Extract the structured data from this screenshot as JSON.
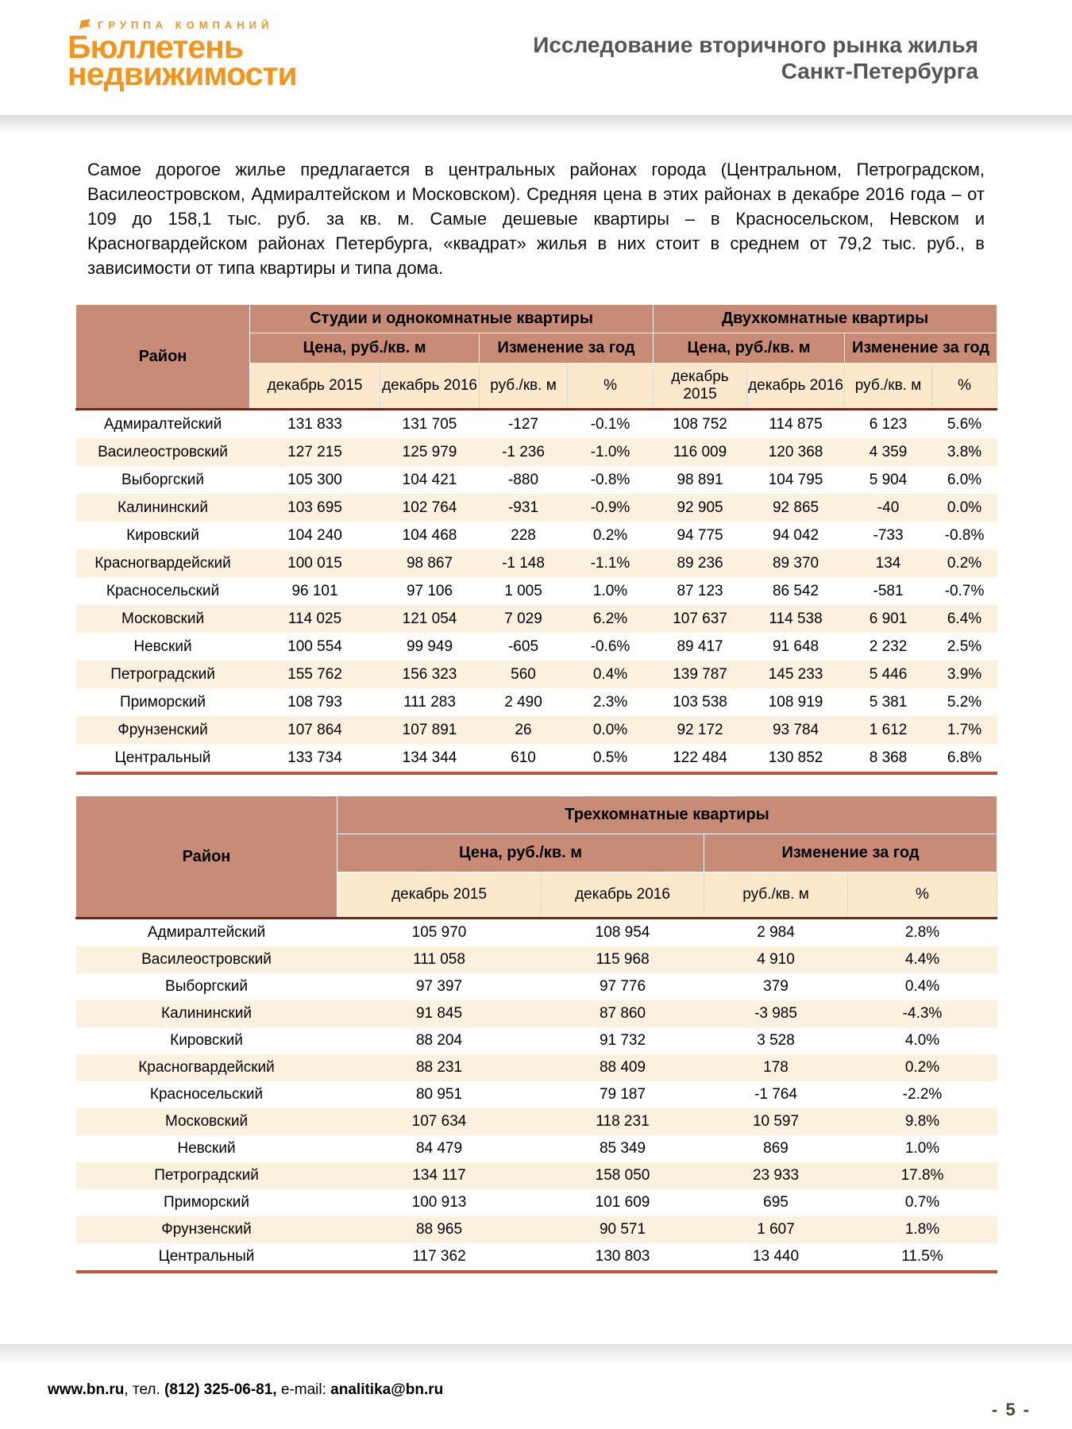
{
  "colors": {
    "logo_orange": "#f3941c",
    "title_gray": "#595454",
    "header_salmon": "#c88c76",
    "header_cream": "#fce9cb",
    "row_alt_cream": "#fcf0df",
    "header_divider_dark": "#6e2718",
    "table_bottom_orange": "#c1553a",
    "page_number_olive": "#4c4731"
  },
  "header": {
    "logo_group_label": "ГРУППА КОМПАНИЙ",
    "logo_line1": "Бюллетень",
    "logo_line2": "недвижимости",
    "title_line1": "Исследование вторичного рынка жилья",
    "title_line2": "Санкт-Петербурга"
  },
  "intro_paragraph": "Самое дорогое жилье предлагается в центральных районах города (Центральном, Петроградском, Василеостровском, Адмиралтейском и Московском). Средняя цена в этих районах в декабре 2016 года – от 109 до 158,1 тыс. руб. за кв. м. Самые дешевые квартиры – в Красносельском, Невском и Красногвардейском районах Петербурга, «квадрат» жилья в них стоит в среднем от 79,2 тыс. руб., в зависимости от типа квартиры и типа дома.",
  "table1": {
    "district_header": "Район",
    "group1": "Студии и однокомнатные квартиры",
    "group2": "Двухкомнатные квартиры",
    "price_header": "Цена, руб./кв. м",
    "change_header": "Изменение за год",
    "sub_headers": [
      "декабрь 2015",
      "декабрь 2016",
      "руб./кв. м",
      "%"
    ],
    "rows": [
      {
        "district": "Адмиралтейский",
        "values": [
          "131 833",
          "131 705",
          "-127",
          "-0.1%",
          "108 752",
          "114 875",
          "6 123",
          "5.6%"
        ]
      },
      {
        "district": "Василеостровский",
        "values": [
          "127 215",
          "125 979",
          "-1 236",
          "-1.0%",
          "116 009",
          "120 368",
          "4 359",
          "3.8%"
        ]
      },
      {
        "district": "Выборгский",
        "values": [
          "105 300",
          "104 421",
          "-880",
          "-0.8%",
          "98 891",
          "104 795",
          "5 904",
          "6.0%"
        ]
      },
      {
        "district": "Калининский",
        "values": [
          "103 695",
          "102 764",
          "-931",
          "-0.9%",
          "92 905",
          "92 865",
          "-40",
          "0.0%"
        ]
      },
      {
        "district": "Кировский",
        "values": [
          "104 240",
          "104 468",
          "228",
          "0.2%",
          "94 775",
          "94 042",
          "-733",
          "-0.8%"
        ]
      },
      {
        "district": "Красногвардейский",
        "values": [
          "100 015",
          "98 867",
          "-1 148",
          "-1.1%",
          "89 236",
          "89 370",
          "134",
          "0.2%"
        ]
      },
      {
        "district": "Красносельский",
        "values": [
          "96 101",
          "97 106",
          "1 005",
          "1.0%",
          "87 123",
          "86 542",
          "-581",
          "-0.7%"
        ]
      },
      {
        "district": "Московский",
        "values": [
          "114 025",
          "121 054",
          "7 029",
          "6.2%",
          "107 637",
          "114 538",
          "6 901",
          "6.4%"
        ]
      },
      {
        "district": "Невский",
        "values": [
          "100 554",
          "99 949",
          "-605",
          "-0.6%",
          "89 417",
          "91 648",
          "2 232",
          "2.5%"
        ]
      },
      {
        "district": "Петроградский",
        "values": [
          "155 762",
          "156 323",
          "560",
          "0.4%",
          "139 787",
          "145 233",
          "5 446",
          "3.9%"
        ]
      },
      {
        "district": "Приморский",
        "values": [
          "108 793",
          "111 283",
          "2 490",
          "2.3%",
          "103 538",
          "108 919",
          "5 381",
          "5.2%"
        ]
      },
      {
        "district": "Фрунзенский",
        "values": [
          "107 864",
          "107 891",
          "26",
          "0.0%",
          "92 172",
          "93 784",
          "1 612",
          "1.7%"
        ]
      },
      {
        "district": "Центральный",
        "values": [
          "133 734",
          "134 344",
          "610",
          "0.5%",
          "122 484",
          "130 852",
          "8 368",
          "6.8%"
        ]
      }
    ]
  },
  "table2": {
    "district_header": "Район",
    "group": "Трехкомнатные квартиры",
    "price_header": "Цена, руб./кв. м",
    "change_header": "Изменение за год",
    "sub_headers": [
      "декабрь 2015",
      "декабрь 2016",
      "руб./кв. м",
      "%"
    ],
    "rows": [
      {
        "district": "Адмиралтейский",
        "values": [
          "105 970",
          "108 954",
          "2 984",
          "2.8%"
        ]
      },
      {
        "district": "Василеостровский",
        "values": [
          "111 058",
          "115 968",
          "4 910",
          "4.4%"
        ]
      },
      {
        "district": "Выборгский",
        "values": [
          "97 397",
          "97 776",
          "379",
          "0.4%"
        ]
      },
      {
        "district": "Калининский",
        "values": [
          "91 845",
          "87 860",
          "-3 985",
          "-4.3%"
        ]
      },
      {
        "district": "Кировский",
        "values": [
          "88 204",
          "91 732",
          "3 528",
          "4.0%"
        ]
      },
      {
        "district": "Красногвардейский",
        "values": [
          "88 231",
          "88 409",
          "178",
          "0.2%"
        ]
      },
      {
        "district": "Красносельский",
        "values": [
          "80 951",
          "79 187",
          "-1 764",
          "-2.2%"
        ]
      },
      {
        "district": "Московский",
        "values": [
          "107 634",
          "118 231",
          "10 597",
          "9.8%"
        ]
      },
      {
        "district": "Невский",
        "values": [
          "84 479",
          "85 349",
          "869",
          "1.0%"
        ]
      },
      {
        "district": "Петроградский",
        "values": [
          "134 117",
          "158 050",
          "23 933",
          "17.8%"
        ]
      },
      {
        "district": "Приморский",
        "values": [
          "100 913",
          "101 609",
          "695",
          "0.7%"
        ]
      },
      {
        "district": "Фрунзенский",
        "values": [
          "88 965",
          "90 571",
          "1 607",
          "1.8%"
        ]
      },
      {
        "district": "Центральный",
        "values": [
          "117 362",
          "130 803",
          "13 440",
          "11.5%"
        ]
      }
    ]
  },
  "footer": {
    "website": "www.bn.ru",
    "tel_label": ", тел. ",
    "phone": "(812) 325-06-81,",
    "email_label": " e-mail: ",
    "email": "analitika@bn.ru",
    "page_number": "- 5 -"
  }
}
